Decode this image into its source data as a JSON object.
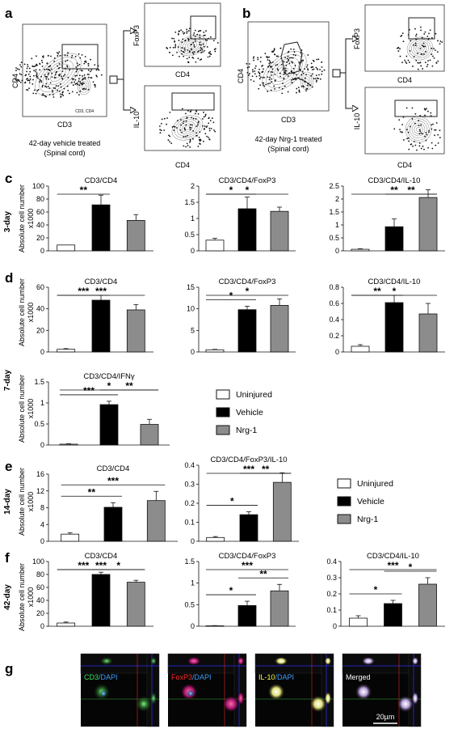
{
  "panel_letters": [
    "a",
    "b",
    "c",
    "d",
    "e",
    "f",
    "g"
  ],
  "flow": {
    "a": {
      "caption_line1": "42-day vehicle treated",
      "caption_line2": "(Spinal cord)",
      "main_xlabel": "CD3",
      "main_ylabel": "CD4",
      "gate_text": "CD3, CD4",
      "top_xlabel": "CD4",
      "top_ylabel": "FoxP3",
      "bottom_xlabel": "CD4",
      "bottom_ylabel": "IL-10"
    },
    "b": {
      "caption_line1": "42-day Nrg-1 treated",
      "caption_line2": "(Spinal cord)",
      "main_xlabel": "CD3",
      "main_ylabel": "CD4",
      "top_xlabel": "CD4",
      "top_ylabel": "FoxP3",
      "bottom_xlabel": "CD4",
      "bottom_ylabel": "IL-10"
    }
  },
  "row_labels": {
    "c": "3-day",
    "d": "7-day",
    "e": "14-day",
    "f": "42-day"
  },
  "ylabel_line1": "Absolute cell number",
  "ylabel_line2": "x1000",
  "legend": [
    "Uninjured",
    "Vehicle",
    "Nrg-1"
  ],
  "colors": {
    "uninjured": "#ffffff",
    "vehicle": "#000000",
    "nrg1": "#8c8c8c"
  },
  "micrographs": {
    "labels": [
      {
        "a": "CD3",
        "b": "/DAPI",
        "ca": "#39e65a",
        "cb": "#3fa0ff"
      },
      {
        "a": "FoxP3",
        "b": "/DAPI",
        "ca": "#ff2a2a",
        "cb": "#3fa0ff"
      },
      {
        "a": "IL-10",
        "b": "/DAPI",
        "ca": "#ffff55",
        "cb": "#3fa0ff"
      },
      {
        "a": "Merged",
        "b": "",
        "ca": "#ffffff",
        "cb": "#ffffff"
      }
    ],
    "scale_bar": "20µm"
  },
  "chart_data": [
    {
      "id": "c1",
      "type": "bar",
      "title": "CD3/CD4",
      "categories": [
        "Uninjured",
        "Vehicle",
        "Nrg-1"
      ],
      "values": [
        9,
        71,
        47
      ],
      "errors": [
        0,
        15,
        9
      ],
      "ylim": [
        0,
        100
      ],
      "yticks": [
        0,
        20,
        40,
        60,
        80,
        100
      ],
      "significance": [
        {
          "pair": [
            0,
            1
          ],
          "label": "**"
        }
      ]
    },
    {
      "id": "c2",
      "type": "bar",
      "title": "CD3/CD4/FoxP3",
      "categories": [
        "Uninjured",
        "Vehicle",
        "Nrg-1"
      ],
      "values": [
        0.33,
        1.3,
        1.22
      ],
      "errors": [
        0.06,
        0.36,
        0.13
      ],
      "ylim": [
        0,
        2
      ],
      "yticks": [
        0,
        0.5,
        1,
        1.5,
        2
      ],
      "significance": [
        {
          "pair": [
            0,
            1
          ],
          "label": "*"
        },
        {
          "pair": [
            0,
            2
          ],
          "label": "*"
        }
      ]
    },
    {
      "id": "c3",
      "type": "bar",
      "title": "CD3/CD4/IL-10",
      "categories": [
        "Uninjured",
        "Vehicle",
        "Nrg-1"
      ],
      "values": [
        0.06,
        0.93,
        2.06
      ],
      "errors": [
        0.02,
        0.3,
        0.3
      ],
      "ylim": [
        0,
        2.5
      ],
      "yticks": [
        0,
        0.5,
        1,
        1.5,
        2,
        2.5
      ],
      "significance": [
        {
          "pair": [
            1,
            2
          ],
          "label": "**"
        },
        {
          "pair": [
            0,
            2
          ],
          "label": "**"
        }
      ]
    },
    {
      "id": "d1",
      "type": "bar",
      "title": "CD3/CD4",
      "categories": [
        "Uninjured",
        "Vehicle",
        "Nrg-1"
      ],
      "values": [
        2.5,
        48,
        39
      ],
      "errors": [
        0.6,
        4.5,
        5
      ],
      "ylim": [
        0,
        60
      ],
      "yticks": [
        0,
        20,
        40,
        60
      ],
      "significance": [
        {
          "pair": [
            0,
            1
          ],
          "label": "***"
        },
        {
          "pair": [
            0,
            2
          ],
          "label": "***"
        }
      ]
    },
    {
      "id": "d2",
      "type": "bar",
      "title": "CD3/CD4/FoxP3",
      "categories": [
        "Uninjured",
        "Vehicle",
        "Nrg-1"
      ],
      "values": [
        0.5,
        9.8,
        10.8
      ],
      "errors": [
        0.1,
        0.8,
        1.5
      ],
      "ylim": [
        0,
        15
      ],
      "yticks": [
        0,
        5,
        10,
        15
      ],
      "significance": [
        {
          "pair": [
            0,
            1
          ],
          "label": "*"
        },
        {
          "pair": [
            0,
            2
          ],
          "label": "*"
        }
      ]
    },
    {
      "id": "d3",
      "type": "bar",
      "title": "CD3/CD4/IL-10",
      "categories": [
        "Uninjured",
        "Vehicle",
        "Nrg-1"
      ],
      "values": [
        0.07,
        0.61,
        0.47
      ],
      "errors": [
        0.02,
        0.09,
        0.13
      ],
      "ylim": [
        0,
        0.8
      ],
      "yticks": [
        0,
        0.2,
        0.4,
        0.6,
        0.8
      ],
      "significance": [
        {
          "pair": [
            0,
            1
          ],
          "label": "**"
        },
        {
          "pair": [
            0,
            2
          ],
          "label": "*"
        }
      ]
    },
    {
      "id": "d4",
      "type": "bar",
      "title": "CD3/CD4/IFNγ",
      "categories": [
        "Uninjured",
        "Vehicle",
        "Nrg-1"
      ],
      "values": [
        0.02,
        0.96,
        0.49
      ],
      "errors": [
        0.01,
        0.08,
        0.12
      ],
      "ylim": [
        0,
        1.5
      ],
      "yticks": [
        0,
        0.5,
        1,
        1.5
      ],
      "significance": [
        {
          "pair": [
            0,
            1
          ],
          "label": "***"
        },
        {
          "pair": [
            1,
            2
          ],
          "label": "**"
        },
        {
          "pair": [
            0,
            2
          ],
          "label": "*"
        }
      ]
    },
    {
      "id": "e1",
      "type": "bar",
      "title": "CD3/CD4",
      "categories": [
        "Uninjured",
        "Vehicle",
        "Nrg-1"
      ],
      "values": [
        1.7,
        8.1,
        9.7
      ],
      "errors": [
        0.3,
        1.1,
        2.2
      ],
      "ylim": [
        0,
        16
      ],
      "yticks": [
        0,
        4,
        8,
        12,
        16
      ],
      "significance": [
        {
          "pair": [
            0,
            1
          ],
          "label": "**"
        },
        {
          "pair": [
            0,
            2
          ],
          "label": "***"
        }
      ]
    },
    {
      "id": "e2",
      "type": "bar",
      "title": "CD3/CD4/FoxP3/IL-10",
      "categories": [
        "Uninjured",
        "Vehicle",
        "Nrg-1"
      ],
      "values": [
        0.02,
        0.14,
        0.31
      ],
      "errors": [
        0.005,
        0.015,
        0.05
      ],
      "ylim": [
        0,
        0.4
      ],
      "yticks": [
        0,
        0.1,
        0.2,
        0.3,
        0.4
      ],
      "significance": [
        {
          "pair": [
            0,
            1
          ],
          "label": "*"
        },
        {
          "pair": [
            1,
            2
          ],
          "label": "**"
        },
        {
          "pair": [
            0,
            2
          ],
          "label": "***"
        }
      ]
    },
    {
      "id": "f1",
      "type": "bar",
      "title": "CD3/CD4",
      "categories": [
        "Uninjured",
        "Vehicle",
        "Nrg-1"
      ],
      "values": [
        5,
        80,
        68
      ],
      "errors": [
        1.5,
        3.5,
        3
      ],
      "ylim": [
        0,
        100
      ],
      "yticks": [
        0,
        20,
        40,
        60,
        80,
        100
      ],
      "significance": [
        {
          "pair": [
            0,
            1
          ],
          "label": "***"
        },
        {
          "pair": [
            1,
            2
          ],
          "label": "*"
        },
        {
          "pair": [
            0,
            2
          ],
          "label": "***"
        }
      ]
    },
    {
      "id": "f2",
      "type": "bar",
      "title": "CD3/CD4/FoxP3",
      "categories": [
        "Uninjured",
        "Vehicle",
        "Nrg-1"
      ],
      "values": [
        0.01,
        0.48,
        0.82
      ],
      "errors": [
        0.005,
        0.1,
        0.15
      ],
      "ylim": [
        0,
        1.5
      ],
      "yticks": [
        0,
        0.5,
        1,
        1.5
      ],
      "significance": [
        {
          "pair": [
            0,
            1
          ],
          "label": "*"
        },
        {
          "pair": [
            1,
            2
          ],
          "label": "**"
        },
        {
          "pair": [
            0,
            2
          ],
          "label": "***"
        }
      ]
    },
    {
      "id": "f3",
      "type": "bar",
      "title": "CD3/CD4/IL-10",
      "categories": [
        "Uninjured",
        "Vehicle",
        "Nrg-1"
      ],
      "values": [
        0.05,
        0.14,
        0.26
      ],
      "errors": [
        0.015,
        0.02,
        0.04
      ],
      "ylim": [
        0,
        0.4
      ],
      "yticks": [
        0,
        0.1,
        0.2,
        0.3,
        0.4
      ],
      "significance": [
        {
          "pair": [
            0,
            1
          ],
          "label": "*"
        },
        {
          "pair": [
            1,
            2
          ],
          "label": "*"
        },
        {
          "pair": [
            0,
            2
          ],
          "label": "***"
        }
      ]
    }
  ]
}
